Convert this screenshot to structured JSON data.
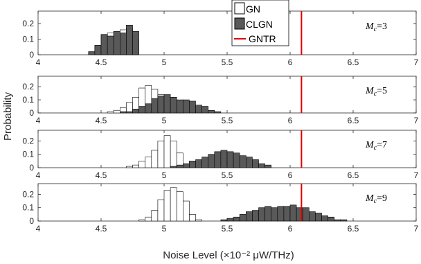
{
  "chart_data": {
    "type": "histogram",
    "xlabel": "Noise Level (×10⁻² μW/THz)",
    "ylabel": "Probability",
    "xlim": [
      4,
      7
    ],
    "ylim": [
      0,
      0.28
    ],
    "xticks": [
      "4",
      "4.5",
      "5",
      "5.5",
      "6",
      "6.5",
      "7"
    ],
    "yticks": [
      "0",
      "0.1",
      "0.2"
    ],
    "legend": {
      "position": "top-center",
      "entries": [
        {
          "label": "GN",
          "style": "open-box"
        },
        {
          "label": "CLGN",
          "style": "filled-box"
        },
        {
          "label": "GNTR",
          "style": "red-line"
        }
      ]
    },
    "colors": {
      "GN_fill": "#ffffff",
      "CLGN_fill": "#595959",
      "edge": "#000000",
      "GNTR": "#e00000",
      "axis": "#262626"
    },
    "bin_width": 0.05,
    "gntr_x": 6.09,
    "panels": [
      {
        "label_main": "M",
        "label_sub": "c",
        "label_eq": "=3",
        "GN": {
          "edges_start": 4.45,
          "values": [
            0.06,
            0.13,
            0.14,
            0.15,
            0.16,
            0.17,
            0.1
          ]
        },
        "CLGN": {
          "edges_start": 4.4,
          "values": [
            0.02,
            0.06,
            0.13,
            0.12,
            0.15,
            0.14,
            0.19,
            0.15
          ]
        }
      },
      {
        "label_main": "M",
        "label_sub": "c",
        "label_eq": "=5",
        "GN": {
          "edges_start": 4.55,
          "values": [
            0.01,
            0.02,
            0.04,
            0.08,
            0.12,
            0.19,
            0.21,
            0.18,
            0.14,
            0.07,
            0.03,
            0.01
          ]
        },
        "CLGN": {
          "edges_start": 4.65,
          "values": [
            0.01,
            0.01,
            0.03,
            0.05,
            0.07,
            0.11,
            0.13,
            0.14,
            0.12,
            0.1,
            0.1,
            0.09,
            0.06,
            0.05,
            0.02,
            0.01
          ]
        }
      },
      {
        "label_main": "M",
        "label_sub": "c",
        "label_eq": "=7",
        "GN": {
          "edges_start": 4.7,
          "values": [
            0.01,
            0.02,
            0.05,
            0.08,
            0.13,
            0.2,
            0.24,
            0.2,
            0.11,
            0.02,
            0.01
          ]
        },
        "CLGN": {
          "edges_start": 5.05,
          "values": [
            0.01,
            0.02,
            0.03,
            0.05,
            0.06,
            0.08,
            0.1,
            0.12,
            0.13,
            0.12,
            0.11,
            0.09,
            0.08,
            0.06,
            0.03,
            0.02
          ]
        }
      },
      {
        "label_main": "M",
        "label_sub": "c",
        "label_eq": "=9",
        "GN": {
          "edges_start": 4.8,
          "values": [
            0.01,
            0.03,
            0.08,
            0.16,
            0.23,
            0.25,
            0.22,
            0.15,
            0.05,
            0.01
          ]
        },
        "CLGN": {
          "edges_start": 5.45,
          "values": [
            0.01,
            0.02,
            0.03,
            0.05,
            0.07,
            0.08,
            0.1,
            0.11,
            0.1,
            0.11,
            0.11,
            0.12,
            0.1,
            0.1,
            0.07,
            0.06,
            0.04,
            0.03,
            0.01,
            0.01
          ]
        }
      }
    ]
  }
}
